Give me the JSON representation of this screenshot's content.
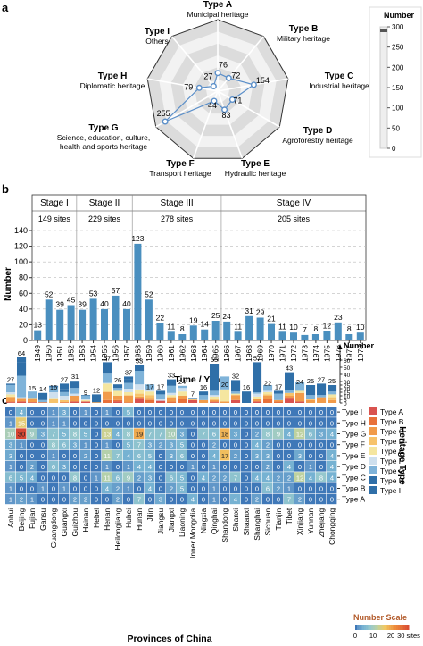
{
  "colors": {
    "bar": "#4a8fbf",
    "radar_line": "#5b8fc9",
    "legend_type_colors": [
      "#d9534f",
      "#e8713a",
      "#f19b4a",
      "#f7c36b",
      "#f5e6a0",
      "#cfe0ee",
      "#7fb3d9",
      "#2f6fa8"
    ]
  },
  "chart_data": [
    {
      "panel": "a",
      "type": "radar",
      "axes": [
        {
          "name": "Type A",
          "desc": "Municipal heritage",
          "value": 76
        },
        {
          "name": "Type B",
          "desc": "Military heritage",
          "value": 72
        },
        {
          "name": "Type C",
          "desc": "Industrial heritage",
          "value": 154
        },
        {
          "name": "Type D",
          "desc": "Agroforestry heritage",
          "value": 71
        },
        {
          "name": "Type E",
          "desc": "Hydraulic heritage",
          "value": 83
        },
        {
          "name": "Type F",
          "desc": "Transport heritage",
          "value": 44
        },
        {
          "name": "Type G",
          "desc": "Science, education, culture, health and sports heritage",
          "value": 255
        },
        {
          "name": "Type H",
          "desc": "Diplomatic heritage",
          "value": 79
        },
        {
          "name": "Type I",
          "desc": "Others",
          "value": 27
        }
      ],
      "scale": {
        "title": "Number",
        "ticks": [
          300,
          250,
          200,
          150,
          100,
          50,
          0
        ]
      },
      "rlim": [
        0,
        300
      ]
    },
    {
      "panel": "b",
      "type": "bar",
      "categories": [
        "1949",
        "1950",
        "1951",
        "1952",
        "1953",
        "1954",
        "1955",
        "1956",
        "1957",
        "1958",
        "1959",
        "1960",
        "1961",
        "1962",
        "1963",
        "1964",
        "1965",
        "1966",
        "1967",
        "1968",
        "1969",
        "1970",
        "1971",
        "1972",
        "1973",
        "1974",
        "1975",
        "1976",
        "1977",
        "1978"
      ],
      "values": [
        13,
        52,
        39,
        45,
        39,
        53,
        40,
        57,
        40,
        123,
        52,
        22,
        11,
        8,
        19,
        14,
        25,
        24,
        11,
        31,
        29,
        21,
        11,
        10,
        7,
        8,
        12,
        23,
        8,
        10
      ],
      "stages": [
        {
          "name": "Stage I",
          "sites": "149 sites",
          "from": "1949",
          "to": "1952"
        },
        {
          "name": "Stage II",
          "sites": "229 sites",
          "from": "1953",
          "to": "1957"
        },
        {
          "name": "Stage III",
          "sites": "278 sites",
          "from": "1958",
          "to": "1965"
        },
        {
          "name": "Stage IV",
          "sites": "205 sites",
          "from": "1966",
          "to": "1978"
        }
      ],
      "xlabel": "Time / Year",
      "ylabel": "Number",
      "ylim": [
        0,
        140
      ],
      "yticks": [
        0,
        20,
        40,
        60,
        80,
        100,
        120,
        140
      ]
    },
    {
      "panel": "c",
      "type": "heatmap",
      "provinces": [
        "Anhui",
        "Beijing",
        "Fujian",
        "Gansu",
        "Guangdong",
        "Guangxi",
        "Guizhou",
        "Hainan",
        "Hebei",
        "Henan",
        "Heilongjiang",
        "Hubei",
        "Hunan",
        "Jilin",
        "Jiangsu",
        "Jiangxi",
        "Liaoning",
        "Inner Mongolia",
        "Ningxia",
        "Qinghai",
        "Shandong",
        "Shanxi",
        "Shaanxi",
        "Shanghai",
        "Sichuan",
        "Tianjin",
        "Tibet",
        "Xinjiang",
        "Yunnan",
        "Zhejiang",
        "Chongqing"
      ],
      "totals": [
        27,
        64,
        15,
        14,
        16,
        27,
        31,
        9,
        12,
        57,
        26,
        37,
        53,
        17,
        17,
        33,
        24,
        7,
        16,
        55,
        20,
        32,
        16,
        57,
        22,
        17,
        43,
        24,
        25,
        27,
        25
      ],
      "types": [
        "Type I",
        "Type H",
        "Type G",
        "Type F",
        "Type E",
        "Type D",
        "Type C",
        "Type B",
        "Type A"
      ],
      "matrix": [
        [
          0,
          4,
          0,
          0,
          1,
          3,
          0,
          1,
          0,
          1,
          0,
          5,
          0,
          0,
          0,
          0,
          0,
          0,
          0,
          0,
          0,
          0,
          0,
          0,
          0,
          0,
          0,
          0,
          0,
          0,
          0
        ],
        [
          1,
          15,
          0,
          0,
          1,
          1,
          0,
          0,
          0,
          0,
          0,
          0,
          0,
          0,
          0,
          0,
          0,
          0,
          0,
          0,
          0,
          0,
          0,
          0,
          0,
          0,
          0,
          0,
          0,
          0,
          0
        ],
        [
          10,
          30,
          9,
          3,
          7,
          5,
          8,
          5,
          0,
          13,
          4,
          8,
          19,
          7,
          7,
          10,
          3,
          0,
          7,
          6,
          18,
          3,
          0,
          2,
          8,
          9,
          4,
          12,
          6,
          3,
          4
        ],
        [
          3,
          1,
          0,
          0,
          8,
          6,
          3,
          1,
          0,
          1,
          0,
          5,
          7,
          3,
          2,
          3,
          5,
          0,
          0,
          2,
          0,
          0,
          0,
          4,
          2,
          0,
          0,
          0,
          0,
          0,
          0
        ],
        [
          3,
          0,
          0,
          0,
          1,
          0,
          0,
          2,
          0,
          11,
          7,
          4,
          6,
          5,
          0,
          3,
          6,
          0,
          0,
          4,
          17,
          2,
          0,
          3,
          3,
          0,
          0,
          3,
          0,
          0,
          4
        ],
        [
          1,
          0,
          2,
          0,
          6,
          3,
          0,
          0,
          0,
          1,
          0,
          1,
          4,
          4,
          0,
          0,
          0,
          1,
          0,
          1,
          0,
          0,
          0,
          0,
          2,
          0,
          4,
          0,
          1,
          0,
          4
        ],
        [
          6,
          5,
          4,
          0,
          0,
          0,
          8,
          0,
          1,
          11,
          6,
          9,
          2,
          3,
          0,
          6,
          5,
          0,
          4,
          2,
          2,
          7,
          0,
          4,
          4,
          2,
          2,
          12,
          4,
          8,
          4
        ],
        [
          1,
          0,
          0,
          1,
          0,
          1,
          0,
          0,
          0,
          4,
          2,
          1,
          0,
          4,
          0,
          2,
          5,
          0,
          0,
          1,
          0,
          0,
          0,
          0,
          6,
          2,
          1,
          0,
          0,
          0,
          0
        ],
        [
          1,
          2,
          1,
          0,
          0,
          0,
          2,
          2,
          0,
          0,
          2,
          0,
          7,
          0,
          3,
          0,
          0,
          4,
          0,
          1,
          0,
          4,
          0,
          2,
          0,
          0,
          7,
          2,
          0,
          0,
          0
        ]
      ],
      "stack_axis": {
        "title": "Number",
        "ticks": [
          60,
          50,
          40,
          35,
          30,
          25,
          20,
          15,
          10,
          5,
          0
        ]
      },
      "legend": [
        "Type A",
        "Type B",
        "Type C",
        "Type D",
        "Type E",
        "Type F",
        "Type G",
        "Type H",
        "Type I"
      ],
      "xlabel": "Provinces of China",
      "ylabel": "Heritage Type",
      "color_scale": {
        "title": "Number Scale",
        "ticks": [
          "0",
          "10",
          "20",
          "30 sites"
        ]
      }
    }
  ],
  "panel_labels": [
    "a",
    "b",
    "c"
  ]
}
